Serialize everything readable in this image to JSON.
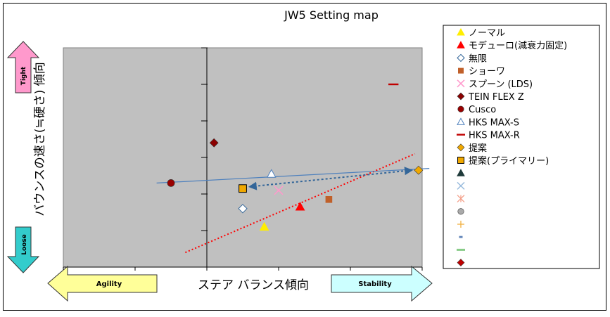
{
  "chart_data": {
    "type": "scatter",
    "title": "JW5 Setting map",
    "xlabel": "ステア バランス傾向",
    "ylabel": "バウンスの速さ(≒硬さ) 傾向",
    "xlim": [
      -2,
      3
    ],
    "ylim": [
      -3,
      3
    ],
    "grid": false,
    "legend_position": "right",
    "arrows": {
      "tight": "Tight",
      "loose": "Loose",
      "agility": "Agility",
      "stability": "Stability"
    },
    "series": [
      {
        "name": "ノーマル",
        "marker": "triangle",
        "color": "#ffee00",
        "x": 0.8,
        "y": -1.9
      },
      {
        "name": "モデューロ(減衰力固定)",
        "marker": "triangle",
        "color": "#ff0000",
        "x": 1.3,
        "y": -1.35
      },
      {
        "name": "無限",
        "marker": "diamond-open",
        "color": "#336699",
        "x": 0.5,
        "y": -1.4
      },
      {
        "name": "ショーワ",
        "marker": "square",
        "color": "#c0602a",
        "x": 1.7,
        "y": -1.15
      },
      {
        "name": "スプーン (LDS)",
        "marker": "x",
        "color": "#ff99cc",
        "x": 1.0,
        "y": -0.9
      },
      {
        "name": "TEIN FLEX Z",
        "marker": "diamond",
        "color": "#8b0000",
        "x": 0.1,
        "y": 0.4
      },
      {
        "name": "Cusco",
        "marker": "circle",
        "color": "#990000",
        "x": -0.5,
        "y": -0.7
      },
      {
        "name": "HKS MAX-S",
        "marker": "triangle-open",
        "color": "#4f81bd",
        "x": 0.9,
        "y": -0.45
      },
      {
        "name": "HKS MAX-R",
        "marker": "dash",
        "color": "#c00000",
        "x": 2.6,
        "y": 2.0
      },
      {
        "name": "提案",
        "marker": "diamond",
        "color": "#f0a800",
        "x": 2.95,
        "y": -0.35
      },
      {
        "name": "提案(プライマリー)",
        "marker": "square-outline",
        "color": "#f0a800",
        "x": 0.5,
        "y": -0.85
      },
      {
        "name": "",
        "marker": "triangle",
        "color": "#1f3a3a"
      },
      {
        "name": "",
        "marker": "x",
        "color": "#99bbdd"
      },
      {
        "name": "",
        "marker": "star",
        "color": "#f4a08a"
      },
      {
        "name": "",
        "marker": "circle",
        "color": "#aaaaaa"
      },
      {
        "name": "",
        "marker": "plus",
        "color": "#f0b040"
      },
      {
        "name": "",
        "marker": "dash-small",
        "color": "#6688bb"
      },
      {
        "name": "",
        "marker": "dash-wide",
        "color": "#88cc88"
      },
      {
        "name": "",
        "marker": "diamond",
        "color": "#c00000"
      }
    ],
    "lines": [
      {
        "kind": "trend",
        "color": "#ff0000",
        "style": "dotted",
        "x": [
          -0.3,
          2.9
        ],
        "y": [
          -2.6,
          0.1
        ]
      },
      {
        "kind": "trend",
        "color": "#4f81bd",
        "style": "solid",
        "x": [
          -0.7,
          3.1
        ],
        "y": [
          -0.7,
          -0.3
        ]
      },
      {
        "kind": "arrow",
        "color": "#336699",
        "style": "dotted-double-arrow",
        "x": [
          0.6,
          2.85
        ],
        "y": [
          -0.8,
          -0.35
        ]
      }
    ]
  },
  "colors": {
    "plot_bg": "#c0c0c0",
    "tight_arrow": "#ff99cc",
    "loose_arrow": "#33cccc",
    "agility_arrow": "#ffff99",
    "stability_arrow": "#ccffff"
  }
}
